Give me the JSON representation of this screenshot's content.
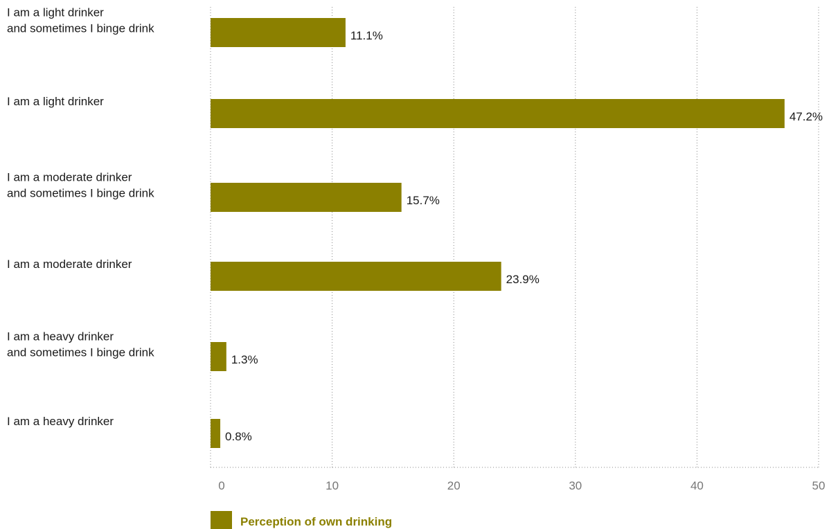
{
  "chart_data": {
    "type": "bar",
    "orientation": "horizontal",
    "categories": [
      [
        "I am a light drinker",
        "and sometimes I binge drink"
      ],
      [
        "I am a light drinker"
      ],
      [
        "I am a moderate drinker",
        "and sometimes I binge drink"
      ],
      [
        "I am a moderate drinker"
      ],
      [
        "I am a heavy drinker",
        "and sometimes I binge drink"
      ],
      [
        "I am a heavy drinker"
      ]
    ],
    "series": [
      {
        "name": "Perception of own drinking",
        "values": [
          11.1,
          47.2,
          15.7,
          23.9,
          1.3,
          0.8
        ],
        "value_labels": [
          "11.1%",
          "47.2%",
          "15.7%",
          "23.9%",
          "1.3%",
          "0.8%"
        ],
        "color": "#8b8000"
      }
    ],
    "xlim": [
      0,
      50
    ],
    "xticks": [
      0,
      10,
      20,
      30,
      40,
      50
    ],
    "grid": "vertical dotted",
    "legend": "bottom-left"
  }
}
